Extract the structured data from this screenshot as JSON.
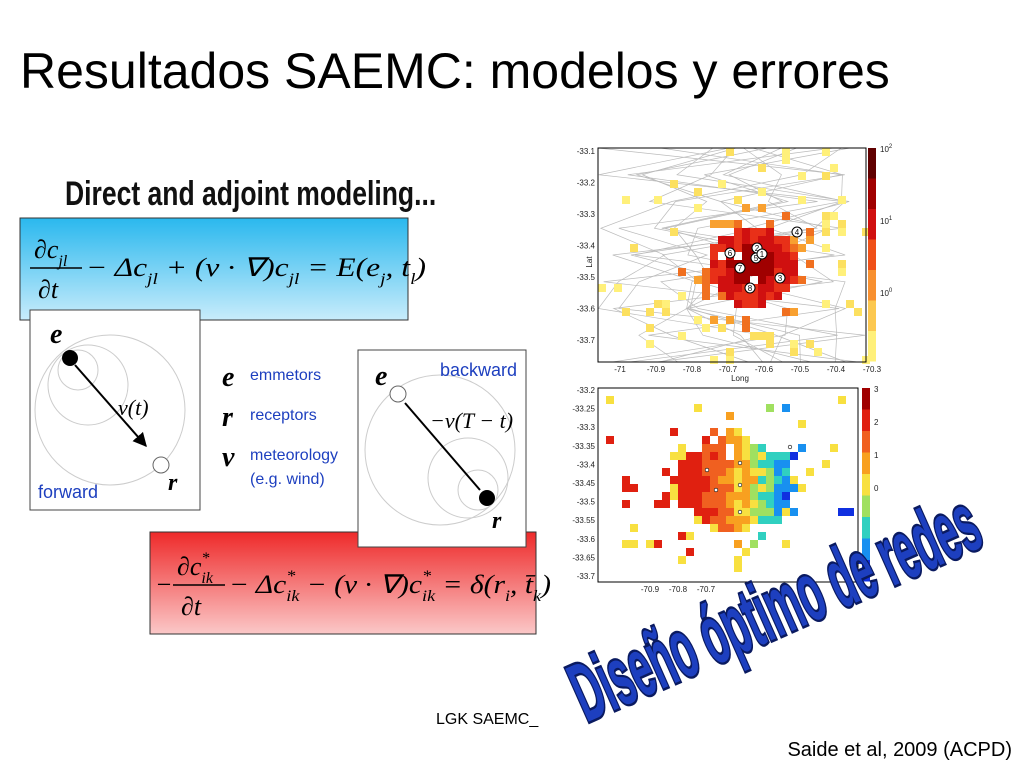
{
  "title": "Resultados SAEMC: modelos y errores",
  "subtitle": "Direct and adjoint modeling...",
  "forward_equation": {
    "prefix": "",
    "num": [
      {
        "text": "∂c",
        "sub": "jl"
      }
    ],
    "den": "∂t",
    "rest": [
      {
        "text": " − Δc",
        "sub": "jl"
      },
      {
        "text": " + (v · ∇)c",
        "sub": "jl"
      },
      {
        "text": " = E(e",
        "sub": "j"
      },
      {
        "text": ", t",
        "sub": "l"
      },
      {
        "text": ")"
      }
    ]
  },
  "adjoint_equation": {
    "prefix": "−",
    "num": [
      {
        "text": "∂c",
        "sup": "*",
        "sub": "ik"
      }
    ],
    "den": "∂t",
    "rest": [
      {
        "text": " − Δc",
        "sup": "*",
        "sub": "ik"
      },
      {
        "text": " − (v · ∇)c",
        "sup": "*",
        "sub": "ik"
      },
      {
        "text": " = δ(r",
        "sub": "i"
      },
      {
        "text": ", t̄",
        "sub": "k"
      },
      {
        "text": ")"
      }
    ]
  },
  "forward_diagram": {
    "source": "e",
    "velocity": "v(t)",
    "receptor": "r",
    "label": "forward"
  },
  "backward_diagram": {
    "source": "e",
    "velocity": "−v(T − t)",
    "receptor": "r",
    "label": "backward"
  },
  "legend": [
    {
      "symbol": "e",
      "text": "emmetors"
    },
    {
      "symbol": "r",
      "text": "receptors"
    },
    {
      "symbol": "v",
      "text": "meteorology",
      "note": "(e.g. wind)"
    }
  ],
  "map_top": {
    "ylabel": "Lat",
    "xlabel": "Long",
    "yticks": [
      -33.1,
      -33.2,
      -33.3,
      -33.4,
      -33.5,
      -33.6,
      -33.7
    ],
    "xticks": [
      -71,
      -70.9,
      -70.8,
      -70.7,
      -70.6,
      -70.5,
      -70.4,
      -70.3
    ],
    "colorbar": [
      {
        "base": "10",
        "exp": "2"
      },
      {
        "base": "10",
        "exp": "1"
      },
      {
        "base": "10",
        "exp": "0"
      }
    ],
    "stations": [
      "4",
      "2",
      "6",
      "5",
      "1",
      "7",
      "3",
      "8"
    ]
  },
  "map_bottom": {
    "yticks": [
      -33.2,
      -33.25,
      -33.3,
      -33.35,
      -33.4,
      -33.45,
      -33.5,
      -33.55,
      -33.6,
      -33.65,
      -33.7
    ],
    "xticks": [
      -70.9,
      -70.8,
      -70.7
    ],
    "colorbar": [
      3,
      2,
      1,
      0
    ]
  },
  "wordart": "Diseño óptimo de redes",
  "footer_left": "LGK SAEMC_",
  "citation": "Saide et al, 2009 (ACPD)"
}
